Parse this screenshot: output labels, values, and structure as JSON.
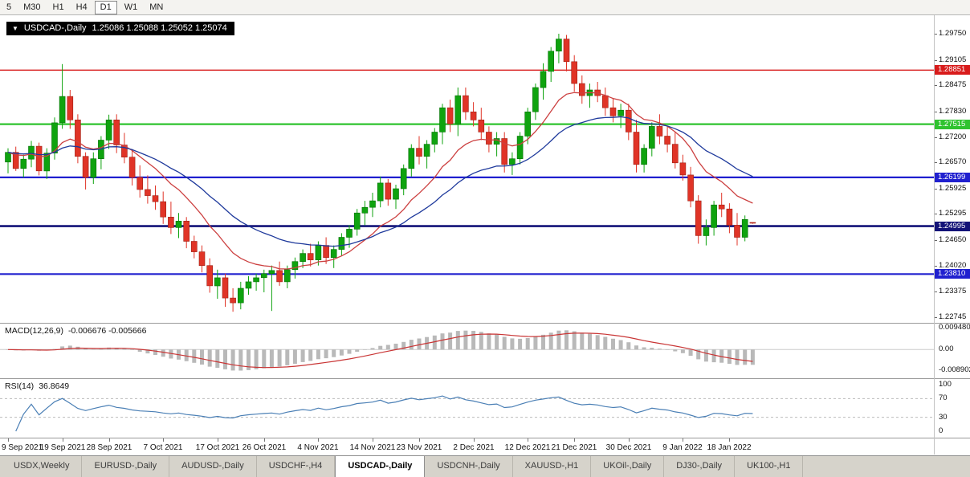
{
  "toolbar": {
    "periods": [
      {
        "label": "5",
        "active": false
      },
      {
        "label": "M30",
        "active": false
      },
      {
        "label": "H1",
        "active": false
      },
      {
        "label": "H4",
        "active": false
      },
      {
        "label": "D1",
        "active": true
      },
      {
        "label": "W1",
        "active": false
      },
      {
        "label": "MN",
        "active": false
      }
    ]
  },
  "chart": {
    "symbol_icon": "▼",
    "symbol_label": "USDCAD-,Daily",
    "ohlc_text": "1.25086 1.25088 1.25052 1.25074",
    "price_ticks": [
      "1.29750",
      "1.29105",
      "1.28475",
      "1.27830",
      "1.27200",
      "1.26570",
      "1.25925",
      "1.25295",
      "1.24650",
      "1.24020",
      "1.23375",
      "1.22745"
    ],
    "hlines": [
      {
        "label": "1.28851",
        "value": 1.28851,
        "color": "#d81b1b",
        "width": 1.4
      },
      {
        "label": "1.27515",
        "value": 1.27515,
        "color": "#2fc32f",
        "width": 2.2
      },
      {
        "label": "1.26199",
        "value": 1.26199,
        "color": "#2020cf",
        "width": 2.2
      },
      {
        "label": "1.24995",
        "value": 1.24995,
        "color": "#131378",
        "width": 2.6
      },
      {
        "label": "1.23810",
        "value": 1.2381,
        "color": "#2020cf",
        "width": 2.2
      }
    ],
    "colors": {
      "bull": "#0fa30f",
      "bull_border": "#067106",
      "bear": "#e03427",
      "bear_border": "#9e2014",
      "ma_fast": "#cc4040",
      "ma_slow": "#1f3a9c",
      "background": "#ffffff"
    }
  },
  "macd": {
    "name": "MACD(12,26,9)",
    "values": "-0.006676 -0.005666",
    "axis": [
      "0.009480",
      "0.00",
      "-0.008902"
    ],
    "histogram_color": "#b9b9b9",
    "signal_color": "#c93535"
  },
  "rsi": {
    "name": "RSI(14)",
    "value": "36.8649",
    "axis": [
      "100",
      "70",
      "30",
      "0"
    ],
    "levels": [
      70,
      30
    ],
    "line_color": "#4a7fb5"
  },
  "time_axis": {
    "labels": [
      {
        "text": "9 Sep 2021",
        "bar": 0
      },
      {
        "text": "19 Sep 2021",
        "bar": 7
      },
      {
        "text": "28 Sep 2021",
        "bar": 13
      },
      {
        "text": "7 Oct 2021",
        "bar": 20
      },
      {
        "text": "17 Oct 2021",
        "bar": 27
      },
      {
        "text": "26 Oct 2021",
        "bar": 33
      },
      {
        "text": "4 Nov 2021",
        "bar": 40
      },
      {
        "text": "14 Nov 2021",
        "bar": 47
      },
      {
        "text": "23 Nov 2021",
        "bar": 53
      },
      {
        "text": "2 Dec 2021",
        "bar": 60
      },
      {
        "text": "12 Dec 2021",
        "bar": 67
      },
      {
        "text": "21 Dec 2021",
        "bar": 73
      },
      {
        "text": "30 Dec 2021",
        "bar": 80
      },
      {
        "text": "9 Jan 2022",
        "bar": 87
      },
      {
        "text": "18 Jan 2022",
        "bar": 93
      }
    ]
  },
  "tabs": [
    {
      "label": "USDX,Weekly",
      "active": false
    },
    {
      "label": "EURUSD-,Daily",
      "active": false
    },
    {
      "label": "AUDUSD-,Daily",
      "active": false
    },
    {
      "label": "USDCHF-,H4",
      "active": false
    },
    {
      "label": "USDCAD-,Daily",
      "active": true
    },
    {
      "label": "USDCNH-,Daily",
      "active": false
    },
    {
      "label": "XAUUSD-,H1",
      "active": false
    },
    {
      "label": "UKOil-,Daily",
      "active": false
    },
    {
      "label": "DJ30-,Daily",
      "active": false
    },
    {
      "label": "UK100-,H1",
      "active": false
    }
  ],
  "chart_data": {
    "type": "candlestick",
    "symbol": "USDCAD",
    "timeframe": "Daily",
    "ylim": [
      1.22745,
      1.2975
    ],
    "overlays": [
      {
        "name": "EMA 12",
        "color": "#cc4040"
      },
      {
        "name": "EMA 26",
        "color": "#1f3a9c"
      }
    ],
    "indicators": [
      {
        "name": "MACD",
        "params": [
          12,
          26,
          9
        ],
        "current": [
          -0.006676,
          -0.005666
        ],
        "range": [
          -0.008902,
          0.00948
        ]
      },
      {
        "name": "RSI",
        "params": [
          14
        ],
        "current": 36.8649,
        "range": [
          0,
          100
        ],
        "levels": [
          30,
          70
        ]
      }
    ],
    "candles": [
      [
        "2021.09.09",
        1.2658,
        1.2692,
        1.263,
        1.2682
      ],
      [
        "2021.09.10",
        1.2682,
        1.2696,
        1.2636,
        1.2642
      ],
      [
        "2021.09.13",
        1.2642,
        1.2676,
        1.262,
        1.2665
      ],
      [
        "2021.09.14",
        1.2665,
        1.271,
        1.2645,
        1.2697
      ],
      [
        "2021.09.15",
        1.2697,
        1.2706,
        1.2625,
        1.2636
      ],
      [
        "2021.09.16",
        1.2636,
        1.2692,
        1.2616,
        1.268
      ],
      [
        "2021.09.17",
        1.268,
        1.2768,
        1.2664,
        1.2755
      ],
      [
        "2021.09.20",
        1.2755,
        1.29,
        1.274,
        1.282
      ],
      [
        "2021.09.21",
        1.282,
        1.2836,
        1.274,
        1.2762
      ],
      [
        "2021.09.22",
        1.2762,
        1.2776,
        1.2655,
        1.2672
      ],
      [
        "2021.09.23",
        1.2672,
        1.2682,
        1.259,
        1.262
      ],
      [
        "2021.09.24",
        1.262,
        1.2682,
        1.2604,
        1.2666
      ],
      [
        "2021.09.27",
        1.2666,
        1.2722,
        1.264,
        1.2712
      ],
      [
        "2021.09.28",
        1.2712,
        1.2775,
        1.269,
        1.2762
      ],
      [
        "2021.09.29",
        1.2762,
        1.2776,
        1.268,
        1.27
      ],
      [
        "2021.09.30",
        1.27,
        1.273,
        1.2655,
        1.267
      ],
      [
        "2021.10.01",
        1.267,
        1.269,
        1.26,
        1.262
      ],
      [
        "2021.10.04",
        1.262,
        1.265,
        1.257,
        1.259
      ],
      [
        "2021.10.05",
        1.259,
        1.2625,
        1.2555,
        1.2575
      ],
      [
        "2021.10.06",
        1.2575,
        1.26,
        1.254,
        1.256
      ],
      [
        "2021.10.07",
        1.256,
        1.2585,
        1.2505,
        1.2522
      ],
      [
        "2021.10.08",
        1.2522,
        1.256,
        1.248,
        1.2496
      ],
      [
        "2021.10.11",
        1.2496,
        1.2532,
        1.247,
        1.2512
      ],
      [
        "2021.10.12",
        1.2512,
        1.2522,
        1.2445,
        1.2462
      ],
      [
        "2021.10.13",
        1.2462,
        1.2476,
        1.242,
        1.2436
      ],
      [
        "2021.10.14",
        1.2436,
        1.2452,
        1.2385,
        1.2402
      ],
      [
        "2021.10.15",
        1.2402,
        1.242,
        1.2335,
        1.2352
      ],
      [
        "2021.10.18",
        1.2352,
        1.2392,
        1.232,
        1.2372
      ],
      [
        "2021.10.19",
        1.2372,
        1.2382,
        1.23,
        1.2322
      ],
      [
        "2021.10.20",
        1.2322,
        1.2346,
        1.2288,
        1.231
      ],
      [
        "2021.10.21",
        1.231,
        1.2362,
        1.2294,
        1.2346
      ],
      [
        "2021.10.22",
        1.2346,
        1.2376,
        1.233,
        1.2362
      ],
      [
        "2021.10.25",
        1.2362,
        1.2382,
        1.234,
        1.2372
      ],
      [
        "2021.10.26",
        1.2372,
        1.2392,
        1.2336,
        1.2382
      ],
      [
        "2021.10.27",
        1.2382,
        1.2402,
        1.229,
        1.239
      ],
      [
        "2021.10.28",
        1.239,
        1.2412,
        1.2352,
        1.2362
      ],
      [
        "2021.10.29",
        1.2362,
        1.2402,
        1.2346,
        1.2392
      ],
      [
        "2021.11.01",
        1.2392,
        1.2422,
        1.237,
        1.2412
      ],
      [
        "2021.11.02",
        1.2412,
        1.2442,
        1.2396,
        1.2432
      ],
      [
        "2021.11.03",
        1.2432,
        1.2456,
        1.24,
        1.2416
      ],
      [
        "2021.11.04",
        1.2416,
        1.2462,
        1.2402,
        1.2452
      ],
      [
        "2021.11.05",
        1.2452,
        1.2472,
        1.2406,
        1.2422
      ],
      [
        "2021.11.08",
        1.2422,
        1.2452,
        1.2396,
        1.2442
      ],
      [
        "2021.11.09",
        1.2442,
        1.2482,
        1.2426,
        1.2472
      ],
      [
        "2021.11.10",
        1.2472,
        1.2502,
        1.2446,
        1.2492
      ],
      [
        "2021.11.11",
        1.2492,
        1.2542,
        1.2476,
        1.2532
      ],
      [
        "2021.11.12",
        1.2532,
        1.2562,
        1.2502,
        1.2546
      ],
      [
        "2021.11.15",
        1.2546,
        1.2582,
        1.2522,
        1.2562
      ],
      [
        "2021.11.16",
        1.2562,
        1.2622,
        1.2546,
        1.2606
      ],
      [
        "2021.11.17",
        1.2606,
        1.2616,
        1.255,
        1.2566
      ],
      [
        "2021.11.18",
        1.2566,
        1.2602,
        1.2542,
        1.2592
      ],
      [
        "2021.11.19",
        1.2592,
        1.2652,
        1.2576,
        1.2642
      ],
      [
        "2021.11.22",
        1.2642,
        1.2702,
        1.2622,
        1.2692
      ],
      [
        "2021.11.23",
        1.2692,
        1.2722,
        1.2652,
        1.2672
      ],
      [
        "2021.11.24",
        1.2672,
        1.2712,
        1.2642,
        1.2702
      ],
      [
        "2021.11.25",
        1.2702,
        1.2742,
        1.2682,
        1.2732
      ],
      [
        "2021.11.26",
        1.2732,
        1.2802,
        1.2702,
        1.2792
      ],
      [
        "2021.11.29",
        1.2792,
        1.2812,
        1.2732,
        1.2752
      ],
      [
        "2021.11.30",
        1.2752,
        1.2842,
        1.2722,
        1.2822
      ],
      [
        "2021.12.01",
        1.2822,
        1.2842,
        1.2762,
        1.2782
      ],
      [
        "2021.12.02",
        1.2782,
        1.2806,
        1.2746,
        1.2762
      ],
      [
        "2021.12.03",
        1.2762,
        1.2792,
        1.2712,
        1.2732
      ],
      [
        "2021.12.06",
        1.2732,
        1.2746,
        1.2682,
        1.2702
      ],
      [
        "2021.12.07",
        1.2702,
        1.2732,
        1.2672,
        1.2716
      ],
      [
        "2021.12.08",
        1.2716,
        1.2732,
        1.2632,
        1.2652
      ],
      [
        "2021.12.09",
        1.2652,
        1.2682,
        1.2626,
        1.2666
      ],
      [
        "2021.12.10",
        1.2666,
        1.2732,
        1.2652,
        1.2722
      ],
      [
        "2021.12.13",
        1.2722,
        1.2792,
        1.2702,
        1.2782
      ],
      [
        "2021.12.14",
        1.2782,
        1.2852,
        1.2762,
        1.2842
      ],
      [
        "2021.12.15",
        1.2842,
        1.2902,
        1.2812,
        1.2882
      ],
      [
        "2021.12.16",
        1.2882,
        1.2942,
        1.2856,
        1.2932
      ],
      [
        "2021.12.17",
        1.2932,
        1.2975,
        1.2902,
        1.2962
      ],
      [
        "2021.12.20",
        1.2962,
        1.2972,
        1.2882,
        1.2906
      ],
      [
        "2021.12.21",
        1.2906,
        1.2922,
        1.2832,
        1.2852
      ],
      [
        "2021.12.22",
        1.2852,
        1.2872,
        1.2802,
        1.2822
      ],
      [
        "2021.12.23",
        1.2822,
        1.2852,
        1.2792,
        1.2836
      ],
      [
        "2021.12.24",
        1.2836,
        1.2856,
        1.2806,
        1.2822
      ],
      [
        "2021.12.27",
        1.2822,
        1.2842,
        1.2772,
        1.2792
      ],
      [
        "2021.12.28",
        1.2792,
        1.2816,
        1.2756,
        1.2772
      ],
      [
        "2021.12.29",
        1.2772,
        1.2802,
        1.2742,
        1.2786
      ],
      [
        "2021.12.30",
        1.2786,
        1.2802,
        1.2712,
        1.2732
      ],
      [
        "2021.12.31",
        1.2732,
        1.2762,
        1.2632,
        1.2652
      ],
      [
        "2022.01.03",
        1.2652,
        1.2702,
        1.2632,
        1.2692
      ],
      [
        "2022.01.04",
        1.2692,
        1.2756,
        1.2672,
        1.2746
      ],
      [
        "2022.01.05",
        1.2746,
        1.2776,
        1.2702,
        1.2722
      ],
      [
        "2022.01.06",
        1.2722,
        1.2746,
        1.2682,
        1.2702
      ],
      [
        "2022.01.07",
        1.2702,
        1.2732,
        1.2642,
        1.2656
      ],
      [
        "2022.01.10",
        1.2656,
        1.2676,
        1.2612,
        1.2626
      ],
      [
        "2022.01.11",
        1.2626,
        1.2646,
        1.2546,
        1.2562
      ],
      [
        "2022.01.12",
        1.2562,
        1.2576,
        1.2456,
        1.2476
      ],
      [
        "2022.01.13",
        1.2476,
        1.2516,
        1.2452,
        1.2496
      ],
      [
        "2022.01.14",
        1.2496,
        1.2562,
        1.2476,
        1.2552
      ],
      [
        "2022.01.17",
        1.2552,
        1.2582,
        1.2522,
        1.2542
      ],
      [
        "2022.01.18",
        1.2542,
        1.2556,
        1.2482,
        1.2502
      ],
      [
        "2022.01.19",
        1.2502,
        1.2532,
        1.2452,
        1.2472
      ],
      [
        "2022.01.20",
        1.2472,
        1.2526,
        1.2462,
        1.2516
      ],
      [
        "2022.01.21",
        1.25086,
        1.25088,
        1.25052,
        1.25074
      ]
    ]
  }
}
